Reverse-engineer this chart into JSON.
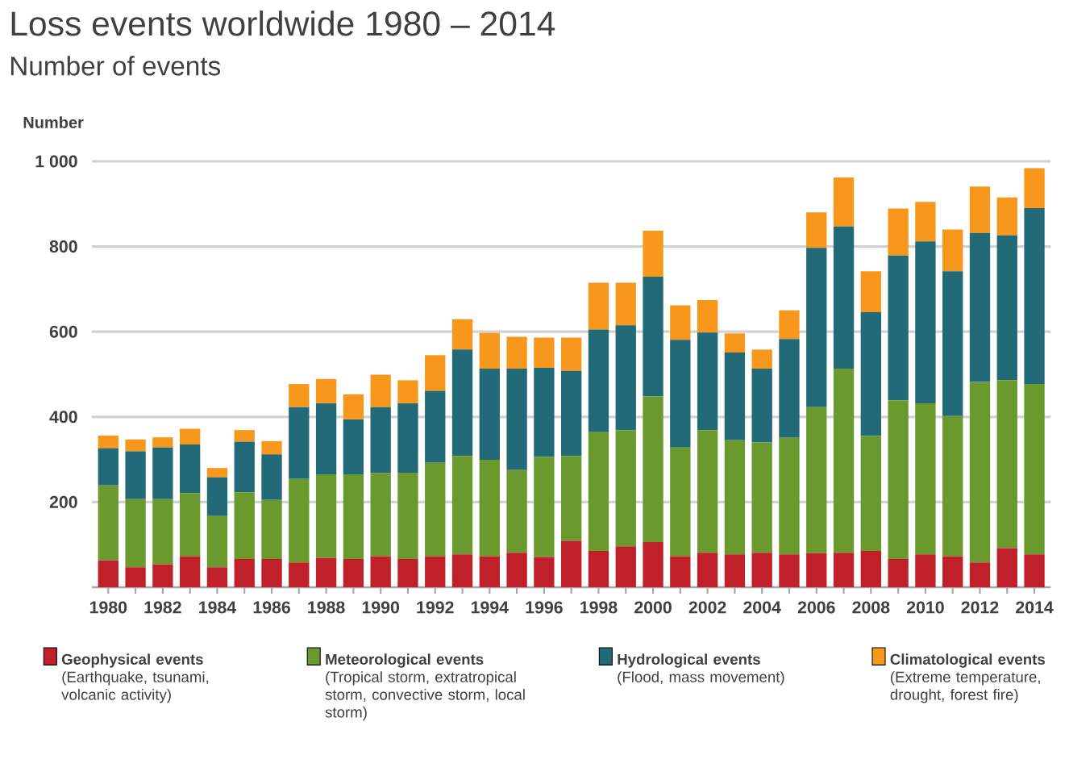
{
  "chart_data": {
    "type": "bar",
    "title": "Loss events worldwide 1980 – 2014",
    "subtitle": "Number of events",
    "ylabel": "Number",
    "categories": [
      "1980",
      null,
      "1982",
      null,
      "1984",
      null,
      "1986",
      null,
      "1988",
      null,
      "1990",
      null,
      "1992",
      null,
      "1994",
      null,
      "1996",
      null,
      "1998",
      null,
      "2000",
      null,
      "2002",
      null,
      "2004",
      null,
      "2006",
      null,
      "2008",
      null,
      "2010",
      null,
      "2012",
      null,
      "2014"
    ],
    "stacked": true,
    "grid": "y",
    "legend": "bottom",
    "ylim": [
      0,
      1000
    ],
    "yticks": [
      200,
      400,
      600,
      800,
      {
        "value": 1000,
        "label": "1 000"
      }
    ],
    "series": [
      {
        "name": "**Geophysical events** (Earthquake, tsunami, volcanic activity)",
        "color": "#c0202a",
        "values": [
          63,
          47,
          54,
          73,
          47,
          66,
          66,
          58,
          69,
          66,
          73,
          66,
          73,
          77,
          73,
          81,
          71,
          109,
          85,
          96,
          106,
          73,
          81,
          77,
          81,
          77,
          80,
          81,
          85,
          66,
          77,
          73,
          58,
          92,
          77
        ]
      },
      {
        "name": "**Meteorological events** (Tropical storm, extratropical storm, convective storm, local storm)",
        "color": "#6a992e",
        "values": [
          176,
          160,
          153,
          148,
          120,
          157,
          139,
          196,
          196,
          199,
          195,
          203,
          219,
          231,
          226,
          194,
          235,
          199,
          279,
          273,
          342,
          255,
          288,
          268,
          259,
          274,
          343,
          432,
          270,
          373,
          355,
          329,
          424,
          394,
          400
        ]
      },
      {
        "name": "**Hydrological events** (Flood, mass movement)",
        "color": "#236a78",
        "values": [
          87,
          112,
          121,
          114,
          91,
          119,
          107,
          169,
          167,
          129,
          155,
          163,
          169,
          250,
          214,
          238,
          209,
          200,
          241,
          246,
          281,
          253,
          229,
          206,
          173,
          232,
          374,
          334,
          291,
          340,
          380,
          340,
          350,
          340,
          413
        ]
      },
      {
        "name": "**Climatological events** (Extreme temperature, drought, forest fire)",
        "color": "#f7981d",
        "values": [
          30,
          28,
          24,
          37,
          22,
          27,
          31,
          54,
          57,
          59,
          76,
          54,
          84,
          71,
          84,
          75,
          71,
          78,
          110,
          100,
          108,
          81,
          76,
          45,
          45,
          67,
          83,
          115,
          96,
          110,
          93,
          98,
          109,
          89,
          94
        ]
      }
    ]
  }
}
